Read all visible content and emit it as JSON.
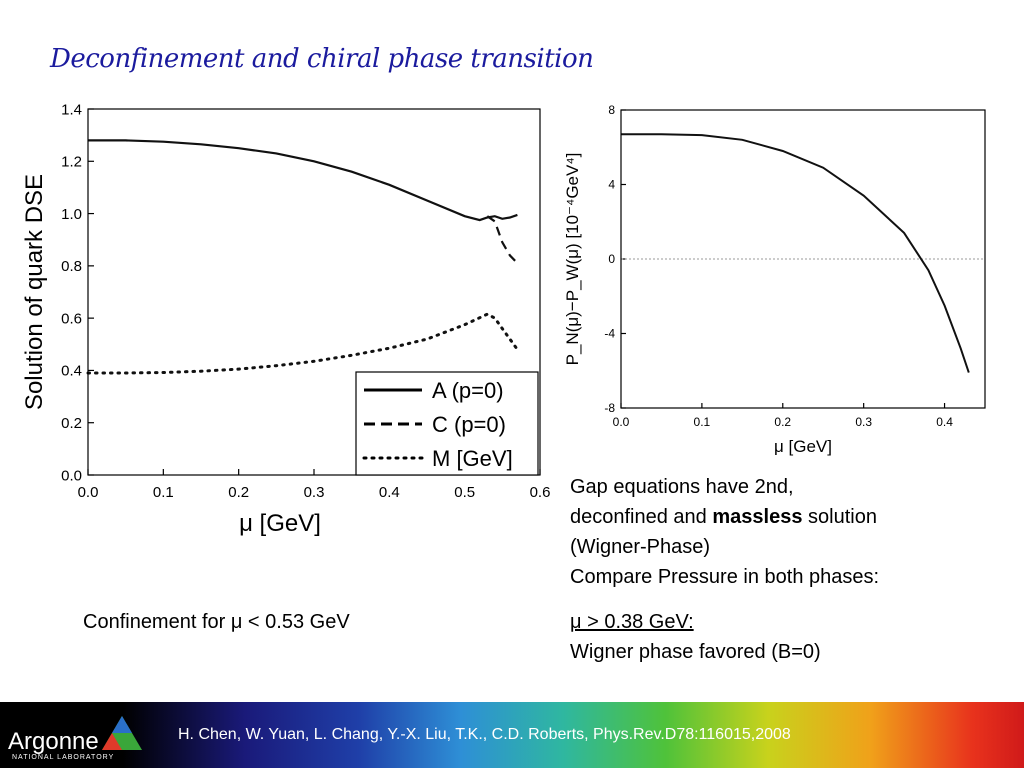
{
  "slide": {
    "title": "Deconfinement and chiral phase transition",
    "left_note": "Confinement for μ < 0.53 GeV",
    "right_note_1a": "Gap equations have 2nd,",
    "right_note_1b": "deconfined and",
    "right_note_1c": "massless",
    "right_note_1d": "solution",
    "right_note_1e": "(Wigner-Phase)",
    "right_note_1f": "Compare Pressure in both phases:",
    "right_note_2a": "μ > 0.38 GeV:",
    "right_note_2b": "Wigner phase favored (B=0)",
    "citation": "H. Chen, W. Yuan, L. Chang, Y.-X. Liu, T.K., C.D. Roberts, Phys.Rev.D78:116015,2008",
    "logo_text": "Argonne",
    "logo_subtext": "NATIONAL LABORATORY"
  },
  "chart_data": [
    {
      "type": "line",
      "xlabel": "μ [GeV]",
      "ylabel": "Solution of quark DSE",
      "xlim": [
        0.0,
        0.6
      ],
      "ylim": [
        0.0,
        1.4
      ],
      "xticks": [
        "0.0",
        "0.1",
        "0.2",
        "0.3",
        "0.4",
        "0.5",
        "0.6"
      ],
      "yticks": [
        "0.0",
        "0.2",
        "0.4",
        "0.6",
        "0.8",
        "1.0",
        "1.2",
        "1.4"
      ],
      "legend_position": "bottom-right",
      "series": [
        {
          "name": "A (p=0)",
          "style": "solid",
          "x": [
            0.0,
            0.05,
            0.1,
            0.15,
            0.2,
            0.25,
            0.3,
            0.35,
            0.4,
            0.45,
            0.5,
            0.52,
            0.53,
            0.54,
            0.55,
            0.56,
            0.57
          ],
          "y": [
            1.28,
            1.28,
            1.275,
            1.265,
            1.25,
            1.23,
            1.2,
            1.16,
            1.11,
            1.05,
            0.99,
            0.975,
            0.985,
            0.99,
            0.98,
            0.985,
            0.995
          ]
        },
        {
          "name": "C (p=0)",
          "style": "dashed",
          "x": [
            0.53,
            0.54,
            0.55,
            0.56,
            0.57
          ],
          "y": [
            0.99,
            0.97,
            0.89,
            0.84,
            0.81
          ]
        },
        {
          "name": "M [GeV]",
          "style": "dotted",
          "x": [
            0.0,
            0.05,
            0.1,
            0.15,
            0.2,
            0.25,
            0.3,
            0.35,
            0.4,
            0.45,
            0.5,
            0.53,
            0.54,
            0.55,
            0.56,
            0.57
          ],
          "y": [
            0.39,
            0.39,
            0.392,
            0.397,
            0.405,
            0.418,
            0.435,
            0.458,
            0.485,
            0.52,
            0.575,
            0.615,
            0.6,
            0.56,
            0.52,
            0.48
          ]
        }
      ]
    },
    {
      "type": "line",
      "xlabel": "μ [GeV]",
      "ylabel": "P_N(μ)−P_W(μ) [10⁻⁴GeV⁴]",
      "xlim": [
        0.0,
        0.45
      ],
      "ylim": [
        -8,
        8
      ],
      "xticks": [
        "0.0",
        "0.1",
        "0.2",
        "0.3",
        "0.4"
      ],
      "yticks": [
        "-8",
        "-4",
        "0",
        "4",
        "8"
      ],
      "zero_line": true,
      "series": [
        {
          "name": "",
          "style": "solid",
          "x": [
            0.0,
            0.05,
            0.1,
            0.15,
            0.2,
            0.25,
            0.3,
            0.35,
            0.38,
            0.4,
            0.42,
            0.43
          ],
          "y": [
            6.7,
            6.7,
            6.65,
            6.4,
            5.8,
            4.9,
            3.4,
            1.4,
            -0.6,
            -2.5,
            -4.8,
            -6.1
          ]
        }
      ]
    }
  ],
  "colors": {
    "title": "#1b1b9e",
    "line": "#111111",
    "zero_line": "#999999",
    "footer_left": "#000000",
    "footer_right": "#d01a1a"
  }
}
